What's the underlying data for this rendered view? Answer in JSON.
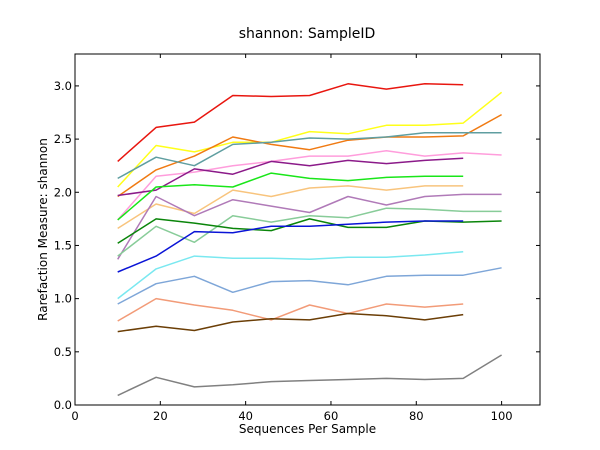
{
  "chart_data": {
    "type": "line",
    "title": "shannon: SampleID",
    "xlabel": "Sequences Per Sample",
    "ylabel": "Rarefaction Measure: shannon",
    "xlim": [
      0,
      109
    ],
    "ylim": [
      0,
      3.3
    ],
    "xticks": [
      0,
      20,
      40,
      60,
      80,
      100
    ],
    "yticks": [
      0.0,
      0.5,
      1.0,
      1.5,
      2.0,
      2.5,
      3.0
    ],
    "xtick_labels": [
      "0",
      "20",
      "40",
      "60",
      "80",
      "100"
    ],
    "ytick_labels": [
      "0.0",
      "0.5",
      "1.0",
      "1.5",
      "2.0",
      "2.5",
      "3.0"
    ],
    "grid": false,
    "legend": "none",
    "x": [
      10,
      19,
      28,
      37,
      46,
      55,
      64,
      73,
      82,
      91,
      100
    ],
    "series": [
      {
        "color": "#e8160f",
        "values": [
          2.29,
          2.61,
          2.66,
          2.91,
          2.9,
          2.91,
          3.02,
          2.97,
          3.02,
          3.01,
          null
        ]
      },
      {
        "color": "#ffff1a",
        "values": [
          2.05,
          2.44,
          2.38,
          2.47,
          2.47,
          2.57,
          2.55,
          2.63,
          2.63,
          2.65,
          2.94
        ]
      },
      {
        "color": "#f07a12",
        "values": [
          1.96,
          2.21,
          2.34,
          2.52,
          2.45,
          2.4,
          2.49,
          2.52,
          2.52,
          2.53,
          2.73
        ]
      },
      {
        "color": "#5f9ea0",
        "values": [
          2.13,
          2.33,
          2.25,
          2.45,
          2.47,
          2.51,
          2.5,
          2.52,
          2.56,
          2.56,
          2.56
        ]
      },
      {
        "color": "#ff9ddc",
        "values": [
          1.74,
          2.15,
          2.19,
          2.25,
          2.29,
          2.34,
          2.34,
          2.39,
          2.34,
          2.37,
          2.35
        ]
      },
      {
        "color": "#8b1a89",
        "values": [
          1.97,
          2.02,
          2.22,
          2.17,
          2.29,
          2.25,
          2.3,
          2.27,
          2.3,
          2.32,
          null
        ]
      },
      {
        "color": "#19e619",
        "values": [
          1.74,
          2.05,
          2.07,
          2.05,
          2.18,
          2.13,
          2.11,
          2.14,
          2.15,
          2.15,
          null
        ]
      },
      {
        "color": "#f8c47d",
        "values": [
          1.66,
          1.89,
          1.8,
          2.02,
          1.96,
          2.04,
          2.06,
          2.02,
          2.06,
          2.06,
          null
        ]
      },
      {
        "color": "#b07ab8",
        "values": [
          1.37,
          1.96,
          1.78,
          1.93,
          1.87,
          1.81,
          1.96,
          1.88,
          1.96,
          1.98,
          1.98
        ]
      },
      {
        "color": "#88cc99",
        "values": [
          1.4,
          1.68,
          1.53,
          1.78,
          1.72,
          1.78,
          1.76,
          1.85,
          1.84,
          1.82,
          1.82
        ]
      },
      {
        "color": "#0a850a",
        "values": [
          1.52,
          1.75,
          1.71,
          1.66,
          1.64,
          1.75,
          1.67,
          1.67,
          1.73,
          1.72,
          1.73
        ]
      },
      {
        "color": "#0a14d6",
        "values": [
          1.25,
          1.4,
          1.63,
          1.62,
          1.68,
          1.68,
          1.7,
          1.72,
          1.73,
          1.73,
          null
        ]
      },
      {
        "color": "#7ae8f0",
        "values": [
          1.0,
          1.28,
          1.4,
          1.38,
          1.38,
          1.37,
          1.39,
          1.39,
          1.41,
          1.44,
          null
        ]
      },
      {
        "color": "#7ea6d8",
        "values": [
          0.95,
          1.14,
          1.21,
          1.06,
          1.16,
          1.17,
          1.13,
          1.21,
          1.22,
          1.22,
          1.29
        ]
      },
      {
        "color": "#f29b78",
        "values": [
          0.79,
          1.0,
          0.94,
          0.89,
          0.8,
          0.94,
          0.86,
          0.95,
          0.92,
          0.95,
          null
        ]
      },
      {
        "color": "#6b3e06",
        "values": [
          0.69,
          0.74,
          0.7,
          0.78,
          0.81,
          0.8,
          0.86,
          0.84,
          0.8,
          0.85,
          null
        ]
      },
      {
        "color": "#808080",
        "values": [
          0.09,
          0.26,
          0.17,
          0.19,
          0.22,
          0.23,
          0.24,
          0.25,
          0.24,
          0.25,
          0.47
        ]
      }
    ]
  }
}
